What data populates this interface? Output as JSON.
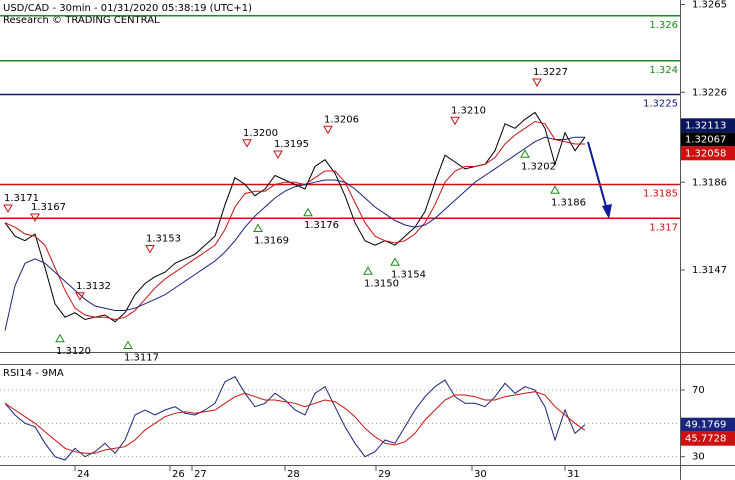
{
  "chart_data": [
    {
      "type": "line",
      "title": "USD/CAD - 30min - 01/31/2020 05:38:19 (UTC+1)",
      "subtitle": "Research © TRADING CENTRAL",
      "xlim": [
        -0.5,
        67.5
      ],
      "ylim": [
        1.3111,
        1.3267
      ],
      "yticks": [
        1.3265,
        1.3226,
        1.3186,
        1.3147
      ],
      "series": [
        {
          "color": "#000000",
          "values": [
            1.3168,
            1.3162,
            1.316,
            1.3163,
            1.3148,
            1.3132,
            1.3126,
            1.3128,
            1.3125,
            1.3126,
            1.3127,
            1.3124,
            1.3128,
            1.3136,
            1.3141,
            1.3144,
            1.3146,
            1.315,
            1.3152,
            1.3154,
            1.3158,
            1.3162,
            1.3176,
            1.3188,
            1.3185,
            1.318,
            1.3183,
            1.3189,
            1.3187,
            1.3185,
            1.3183,
            1.3193,
            1.3196,
            1.319,
            1.318,
            1.3168,
            1.316,
            1.3158,
            1.316,
            1.3158,
            1.3162,
            1.3166,
            1.3173,
            1.3186,
            1.3198,
            1.3195,
            1.3192,
            1.3193,
            1.3194,
            1.32,
            1.3212,
            1.321,
            1.3214,
            1.3217,
            1.321,
            1.3194,
            1.3208,
            1.32,
            1.3206
          ]
        },
        {
          "color": "#cc1111",
          "values": [
            1.3168,
            1.3166,
            1.3163,
            1.3162,
            1.3158,
            1.3148,
            1.3138,
            1.313,
            1.3127,
            1.3126,
            1.3126,
            1.3125,
            1.3126,
            1.3129,
            1.3134,
            1.3139,
            1.3143,
            1.3146,
            1.3149,
            1.3152,
            1.3155,
            1.3158,
            1.3165,
            1.3175,
            1.3181,
            1.3182,
            1.3182,
            1.3185,
            1.3186,
            1.3186,
            1.3185,
            1.3188,
            1.3191,
            1.3191,
            1.3186,
            1.3177,
            1.3168,
            1.3162,
            1.316,
            1.3159,
            1.316,
            1.3163,
            1.3168,
            1.3176,
            1.3186,
            1.3191,
            1.3193,
            1.3193,
            1.3194,
            1.3197,
            1.3203,
            1.3207,
            1.321,
            1.3213,
            1.3212,
            1.3205,
            1.3204,
            1.3203,
            1.3203
          ]
        },
        {
          "color": "#1a237e",
          "values": [
            1.312,
            1.314,
            1.315,
            1.3152,
            1.315,
            1.3146,
            1.3142,
            1.3138,
            1.3134,
            1.3131,
            1.313,
            1.3129,
            1.3129,
            1.313,
            1.3132,
            1.3134,
            1.3136,
            1.3139,
            1.3142,
            1.3145,
            1.3148,
            1.3151,
            1.3155,
            1.316,
            1.3166,
            1.3171,
            1.3175,
            1.3179,
            1.3182,
            1.3184,
            1.3185,
            1.3186,
            1.3187,
            1.3187,
            1.3186,
            1.3183,
            1.3179,
            1.3175,
            1.3172,
            1.3169,
            1.3167,
            1.3166,
            1.3167,
            1.317,
            1.3174,
            1.3178,
            1.3182,
            1.3186,
            1.3189,
            1.3192,
            1.3195,
            1.3198,
            1.3201,
            1.3204,
            1.3206,
            1.3205,
            1.3205,
            1.3206,
            1.3206
          ]
        }
      ],
      "levels": [
        {
          "value": 1.326,
          "label": "1.326",
          "color": "#1e8c1e"
        },
        {
          "value": 1.324,
          "label": "1.324",
          "color": "#1e8c1e"
        },
        {
          "value": 1.3225,
          "label": "1.3225",
          "color": "#0d1a7a"
        },
        {
          "value": 1.3185,
          "label": "1.3185",
          "color": "#d01010"
        },
        {
          "value": 1.317,
          "label": "1.317",
          "color": "#d01010"
        }
      ],
      "pivots": [
        {
          "x": 0.3,
          "value": 1.3171,
          "label": "1.3171",
          "type": "high"
        },
        {
          "x": 3,
          "value": 1.3167,
          "label": "1.3167",
          "type": "high"
        },
        {
          "x": 5.5,
          "value": 1.312,
          "label": "1.3120",
          "type": "low"
        },
        {
          "x": 7.5,
          "value": 1.3132,
          "label": "1.3132",
          "type": "high"
        },
        {
          "x": 12.3,
          "value": 1.3117,
          "label": "1.3117",
          "type": "low"
        },
        {
          "x": 14.5,
          "value": 1.3153,
          "label": "1.3153",
          "type": "high"
        },
        {
          "x": 24.2,
          "value": 1.32,
          "label": "1.3200",
          "type": "high"
        },
        {
          "x": 25.3,
          "value": 1.3169,
          "label": "1.3169",
          "type": "low"
        },
        {
          "x": 27.3,
          "value": 1.3195,
          "label": "1.3195",
          "type": "high"
        },
        {
          "x": 30.3,
          "value": 1.3176,
          "label": "1.3176",
          "type": "low"
        },
        {
          "x": 32.3,
          "value": 1.3206,
          "label": "1.3206",
          "type": "high"
        },
        {
          "x": 36.3,
          "value": 1.315,
          "label": "1.3150",
          "type": "low"
        },
        {
          "x": 39,
          "value": 1.3154,
          "label": "1.3154",
          "type": "low"
        },
        {
          "x": 45,
          "value": 1.321,
          "label": "1.3210",
          "type": "high"
        },
        {
          "x": 52,
          "value": 1.3202,
          "label": "1.3202",
          "type": "low"
        },
        {
          "x": 53.2,
          "value": 1.3227,
          "label": "1.3227",
          "type": "high"
        },
        {
          "x": 55,
          "value": 1.3186,
          "label": "1.3186",
          "type": "low"
        }
      ],
      "price_labels": [
        {
          "value": 1.32113,
          "color": "#0a1560"
        },
        {
          "value": 1.32067,
          "color": "#000000"
        },
        {
          "value": 1.32058,
          "color": "#d01010"
        }
      ]
    },
    {
      "type": "line",
      "title": "RSI14 - 9MA",
      "xlim": [
        -0.5,
        67.5
      ],
      "ylim": [
        25,
        85
      ],
      "yticks": [
        30,
        70
      ],
      "midline": 50,
      "xticks": [
        {
          "value": 7,
          "label": "24"
        },
        {
          "value": 16.5,
          "label": "26"
        },
        {
          "value": 18.7,
          "label": "27"
        },
        {
          "value": 28,
          "label": "28"
        },
        {
          "value": 37.1,
          "label": "29"
        },
        {
          "value": 46.7,
          "label": "30"
        },
        {
          "value": 56,
          "label": "31"
        }
      ],
      "series": [
        {
          "color": "#1a237e",
          "values": [
            62,
            55,
            50,
            48,
            38,
            30,
            28,
            35,
            30,
            33,
            38,
            32,
            40,
            55,
            58,
            55,
            58,
            60,
            56,
            55,
            58,
            62,
            75,
            78,
            68,
            60,
            62,
            68,
            64,
            58,
            55,
            68,
            72,
            60,
            48,
            38,
            30,
            33,
            40,
            38,
            48,
            58,
            66,
            72,
            76,
            66,
            62,
            62,
            60,
            66,
            74,
            68,
            72,
            70,
            60,
            40,
            58,
            44,
            49.1769
          ]
        },
        {
          "color": "#cc1111",
          "values": [
            62,
            58,
            54,
            50,
            45,
            40,
            35,
            33,
            32,
            32,
            34,
            35,
            36,
            40,
            46,
            50,
            54,
            56,
            57,
            56,
            57,
            58,
            62,
            66,
            68,
            66,
            64,
            64,
            63,
            62,
            60,
            62,
            64,
            63,
            59,
            54,
            47,
            42,
            38,
            37,
            39,
            44,
            52,
            58,
            64,
            67,
            67,
            66,
            64,
            64,
            66,
            67,
            68,
            69,
            67,
            60,
            55,
            50,
            45.7728
          ]
        }
      ]
    }
  ]
}
